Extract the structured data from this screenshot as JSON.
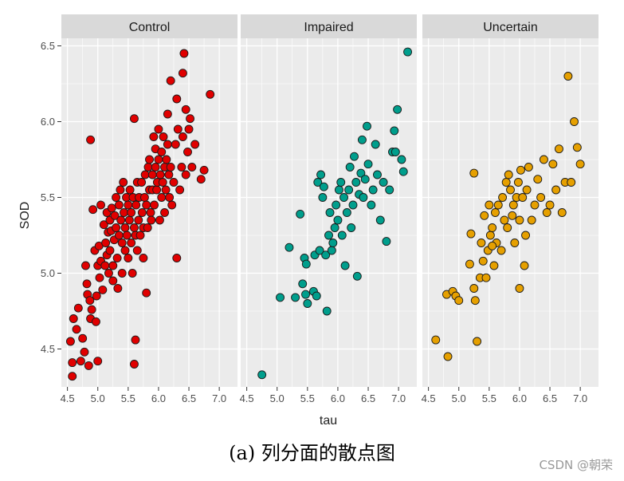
{
  "chart_data": {
    "type": "scatter",
    "xlabel": "tau",
    "ylabel": "SOD",
    "xlim": [
      4.4,
      7.3
    ],
    "ylim": [
      4.25,
      6.55
    ],
    "x_ticks": [
      "4.5",
      "5.0",
      "5.5",
      "6.0",
      "6.5",
      "7.0"
    ],
    "y_ticks": [
      "4.5",
      "5.0",
      "5.5",
      "6.0",
      "6.5"
    ],
    "grid": true,
    "panel_background": "#ebebeb",
    "strip_background": "#d9d9d9",
    "facets": [
      {
        "name": "Control",
        "color": "#e00000",
        "points": [
          [
            4.55,
            4.55
          ],
          [
            4.58,
            4.41
          ],
          [
            4.58,
            4.32
          ],
          [
            4.6,
            4.7
          ],
          [
            4.65,
            4.63
          ],
          [
            4.68,
            4.77
          ],
          [
            4.72,
            4.42
          ],
          [
            4.75,
            4.57
          ],
          [
            4.78,
            4.48
          ],
          [
            4.8,
            5.05
          ],
          [
            4.82,
            4.93
          ],
          [
            4.83,
            4.86
          ],
          [
            4.85,
            4.39
          ],
          [
            4.87,
            4.82
          ],
          [
            4.88,
            4.7
          ],
          [
            4.9,
            4.76
          ],
          [
            4.92,
            5.42
          ],
          [
            4.95,
            5.15
          ],
          [
            4.97,
            4.68
          ],
          [
            4.98,
            4.85
          ],
          [
            5.0,
            4.42
          ],
          [
            5.0,
            5.05
          ],
          [
            5.02,
            5.18
          ],
          [
            5.03,
            4.97
          ],
          [
            5.05,
            5.08
          ],
          [
            5.05,
            5.45
          ],
          [
            5.08,
            4.89
          ],
          [
            5.1,
            5.32
          ],
          [
            5.12,
            5.05
          ],
          [
            5.13,
            5.2
          ],
          [
            5.15,
            5.4
          ],
          [
            5.15,
            5.12
          ],
          [
            5.17,
            5.27
          ],
          [
            5.18,
            5.0
          ],
          [
            5.2,
            5.35
          ],
          [
            5.2,
            5.15
          ],
          [
            5.22,
            5.28
          ],
          [
            5.23,
            5.43
          ],
          [
            5.25,
            5.05
          ],
          [
            5.25,
            4.95
          ],
          [
            5.27,
            5.22
          ],
          [
            5.28,
            5.38
          ],
          [
            5.3,
            5.5
          ],
          [
            5.3,
            5.3
          ],
          [
            5.32,
            5.1
          ],
          [
            5.33,
            4.9
          ],
          [
            5.35,
            5.25
          ],
          [
            5.35,
            5.45
          ],
          [
            5.37,
            5.55
          ],
          [
            5.38,
            5.35
          ],
          [
            5.4,
            5.2
          ],
          [
            5.4,
            5.0
          ],
          [
            5.42,
            5.6
          ],
          [
            5.43,
            5.4
          ],
          [
            5.45,
            5.3
          ],
          [
            5.45,
            5.15
          ],
          [
            5.47,
            5.5
          ],
          [
            5.48,
            5.25
          ],
          [
            5.5,
            5.45
          ],
          [
            5.5,
            5.1
          ],
          [
            5.52,
            5.35
          ],
          [
            5.53,
            5.55
          ],
          [
            5.55,
            5.4
          ],
          [
            5.55,
            5.2
          ],
          [
            5.57,
            5.0
          ],
          [
            5.58,
            5.5
          ],
          [
            5.6,
            5.3
          ],
          [
            5.6,
            4.4
          ],
          [
            5.62,
            4.56
          ],
          [
            5.62,
            5.25
          ],
          [
            5.63,
            5.45
          ],
          [
            5.65,
            5.6
          ],
          [
            5.65,
            5.15
          ],
          [
            5.67,
            5.35
          ],
          [
            5.68,
            5.5
          ],
          [
            5.7,
            5.25
          ],
          [
            5.72,
            5.6
          ],
          [
            5.73,
            5.4
          ],
          [
            5.75,
            5.3
          ],
          [
            5.75,
            5.1
          ],
          [
            5.77,
            5.5
          ],
          [
            5.78,
            5.65
          ],
          [
            5.8,
            5.45
          ],
          [
            5.8,
            4.87
          ],
          [
            5.82,
            5.3
          ],
          [
            5.83,
            5.7
          ],
          [
            5.85,
            5.55
          ],
          [
            5.85,
            5.75
          ],
          [
            5.87,
            5.4
          ],
          [
            5.88,
            5.35
          ],
          [
            5.9,
            5.55
          ],
          [
            5.9,
            5.65
          ],
          [
            5.92,
            5.9
          ],
          [
            5.93,
            5.45
          ],
          [
            5.95,
            5.7
          ],
          [
            5.95,
            5.82
          ],
          [
            5.97,
            5.55
          ],
          [
            5.98,
            5.6
          ],
          [
            6.0,
            5.75
          ],
          [
            6.0,
            5.95
          ],
          [
            6.02,
            5.35
          ],
          [
            6.03,
            5.65
          ],
          [
            6.05,
            5.5
          ],
          [
            6.05,
            5.8
          ],
          [
            6.07,
            5.6
          ],
          [
            6.08,
            5.9
          ],
          [
            6.1,
            5.7
          ],
          [
            6.1,
            5.4
          ],
          [
            6.12,
            5.55
          ],
          [
            6.13,
            5.75
          ],
          [
            6.15,
            5.85
          ],
          [
            6.15,
            6.05
          ],
          [
            6.17,
            5.65
          ],
          [
            6.18,
            5.5
          ],
          [
            6.2,
            5.7
          ],
          [
            6.2,
            6.27
          ],
          [
            6.22,
            5.45
          ],
          [
            6.25,
            5.6
          ],
          [
            6.28,
            5.85
          ],
          [
            6.3,
            5.1
          ],
          [
            6.3,
            6.15
          ],
          [
            6.32,
            5.95
          ],
          [
            6.35,
            5.55
          ],
          [
            6.38,
            5.7
          ],
          [
            6.4,
            5.9
          ],
          [
            6.4,
            6.32
          ],
          [
            6.42,
            6.45
          ],
          [
            6.45,
            6.08
          ],
          [
            6.45,
            5.65
          ],
          [
            6.48,
            5.8
          ],
          [
            6.5,
            5.95
          ],
          [
            6.52,
            6.02
          ],
          [
            6.55,
            5.7
          ],
          [
            6.6,
            5.85
          ],
          [
            6.7,
            5.62
          ],
          [
            6.75,
            5.68
          ],
          [
            6.85,
            6.18
          ],
          [
            5.6,
            6.02
          ],
          [
            4.88,
            5.88
          ]
        ]
      },
      {
        "name": "Impaired",
        "color": "#009e8c",
        "points": [
          [
            4.75,
            4.33
          ],
          [
            5.05,
            4.84
          ],
          [
            5.2,
            5.17
          ],
          [
            5.3,
            4.84
          ],
          [
            5.38,
            5.39
          ],
          [
            5.42,
            4.93
          ],
          [
            5.45,
            5.1
          ],
          [
            5.47,
            4.86
          ],
          [
            5.48,
            5.06
          ],
          [
            5.5,
            4.8
          ],
          [
            5.6,
            4.88
          ],
          [
            5.62,
            5.12
          ],
          [
            5.65,
            4.85
          ],
          [
            5.67,
            5.6
          ],
          [
            5.7,
            5.15
          ],
          [
            5.72,
            5.65
          ],
          [
            5.75,
            5.5
          ],
          [
            5.77,
            5.57
          ],
          [
            5.8,
            5.12
          ],
          [
            5.82,
            4.75
          ],
          [
            5.85,
            5.25
          ],
          [
            5.87,
            5.4
          ],
          [
            5.9,
            5.15
          ],
          [
            5.92,
            5.2
          ],
          [
            5.95,
            5.3
          ],
          [
            5.97,
            5.45
          ],
          [
            6.0,
            5.35
          ],
          [
            6.02,
            5.55
          ],
          [
            6.05,
            5.6
          ],
          [
            6.07,
            5.25
          ],
          [
            6.1,
            5.5
          ],
          [
            6.12,
            5.05
          ],
          [
            6.15,
            5.4
          ],
          [
            6.18,
            5.55
          ],
          [
            6.2,
            5.7
          ],
          [
            6.22,
            5.3
          ],
          [
            6.25,
            5.45
          ],
          [
            6.27,
            5.77
          ],
          [
            6.3,
            5.6
          ],
          [
            6.32,
            4.98
          ],
          [
            6.35,
            5.52
          ],
          [
            6.38,
            5.66
          ],
          [
            6.4,
            5.88
          ],
          [
            6.42,
            5.5
          ],
          [
            6.45,
            5.62
          ],
          [
            6.48,
            5.97
          ],
          [
            6.5,
            5.72
          ],
          [
            6.55,
            5.45
          ],
          [
            6.58,
            5.55
          ],
          [
            6.62,
            5.85
          ],
          [
            6.65,
            5.65
          ],
          [
            6.7,
            5.35
          ],
          [
            6.75,
            5.6
          ],
          [
            6.8,
            5.21
          ],
          [
            6.85,
            5.55
          ],
          [
            6.9,
            5.8
          ],
          [
            6.93,
            5.94
          ],
          [
            6.95,
            5.8
          ],
          [
            6.98,
            6.08
          ],
          [
            7.05,
            5.75
          ],
          [
            7.08,
            5.67
          ],
          [
            7.15,
            6.46
          ]
        ]
      },
      {
        "name": "Uncertain",
        "color": "#e6a000",
        "points": [
          [
            4.62,
            4.56
          ],
          [
            4.8,
            4.86
          ],
          [
            4.82,
            4.45
          ],
          [
            4.9,
            4.88
          ],
          [
            4.95,
            4.85
          ],
          [
            5.0,
            4.82
          ],
          [
            5.18,
            5.06
          ],
          [
            5.2,
            5.26
          ],
          [
            5.25,
            4.9
          ],
          [
            5.27,
            4.82
          ],
          [
            5.3,
            4.55
          ],
          [
            5.35,
            4.97
          ],
          [
            5.37,
            5.2
          ],
          [
            5.4,
            5.08
          ],
          [
            5.42,
            5.38
          ],
          [
            5.45,
            4.97
          ],
          [
            5.48,
            5.15
          ],
          [
            5.5,
            5.45
          ],
          [
            5.52,
            5.25
          ],
          [
            5.55,
            5.3
          ],
          [
            5.58,
            5.05
          ],
          [
            5.6,
            5.4
          ],
          [
            5.62,
            5.2
          ],
          [
            5.65,
            5.45
          ],
          [
            5.7,
            5.15
          ],
          [
            5.72,
            5.5
          ],
          [
            5.75,
            5.35
          ],
          [
            5.78,
            5.6
          ],
          [
            5.8,
            5.3
          ],
          [
            5.82,
            5.65
          ],
          [
            5.85,
            5.55
          ],
          [
            5.88,
            5.38
          ],
          [
            5.9,
            5.45
          ],
          [
            5.92,
            5.2
          ],
          [
            5.95,
            5.5
          ],
          [
            5.98,
            5.6
          ],
          [
            6.0,
            5.35
          ],
          [
            6.02,
            5.68
          ],
          [
            6.05,
            5.5
          ],
          [
            6.08,
            5.05
          ],
          [
            6.1,
            5.25
          ],
          [
            6.12,
            5.55
          ],
          [
            6.15,
            5.7
          ],
          [
            6.2,
            5.35
          ],
          [
            6.25,
            5.45
          ],
          [
            6.3,
            5.62
          ],
          [
            6.35,
            5.5
          ],
          [
            6.4,
            5.75
          ],
          [
            6.45,
            5.4
          ],
          [
            6.5,
            5.45
          ],
          [
            6.55,
            5.72
          ],
          [
            6.6,
            5.55
          ],
          [
            6.65,
            5.82
          ],
          [
            6.7,
            5.4
          ],
          [
            6.75,
            5.6
          ],
          [
            6.8,
            6.3
          ],
          [
            6.85,
            5.6
          ],
          [
            6.9,
            6.0
          ],
          [
            6.95,
            5.83
          ],
          [
            7.0,
            5.72
          ],
          [
            5.25,
            5.66
          ],
          [
            5.55,
            5.18
          ],
          [
            6.0,
            4.9
          ]
        ]
      }
    ]
  },
  "caption": "(a) 列分面的散点图",
  "watermark": "CSDN @朝荣"
}
